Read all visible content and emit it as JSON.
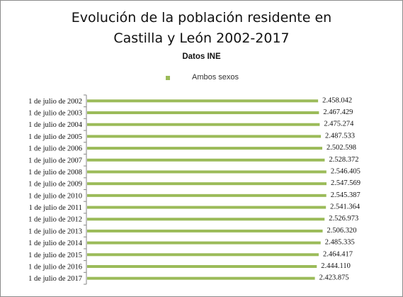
{
  "chart_data": {
    "type": "bar",
    "orientation": "horizontal",
    "title_lines": [
      "Evolución de la población residente en",
      "Castilla y León 2002-2017"
    ],
    "subtitle": "Datos INE",
    "categories": [
      "1 de julio de 2002",
      "1 de julio de 2003",
      "1 de julio de 2004",
      "1 de julio de 2005",
      "1 de julio de 2006",
      "1 de julio de 2007",
      "1 de julio de 2008",
      "1 de julio de 2009",
      "1 de julio de 2010",
      "1 de julio de 2011",
      "1 de julio de 2012",
      "1 de julio de 2013",
      "1 de julio de 2014",
      "1 de julio de 2015",
      "1 de julio de 2016",
      "1 de julio de 2017"
    ],
    "series": [
      {
        "name": "Ambos sexos",
        "values": [
          2458042,
          2467429,
          2475274,
          2487533,
          2502598,
          2528372,
          2546405,
          2547569,
          2545387,
          2541364,
          2526973,
          2506320,
          2485335,
          2464417,
          2444110,
          2423875
        ]
      }
    ],
    "data_labels": [
      "2.458.042",
      "2.467.429",
      "2.475.274",
      "2.487.533",
      "2.502.598",
      "2.528.372",
      "2.546.405",
      "2.547.569",
      "2.545.387",
      "2.541.364",
      "2.526.973",
      "2.506.320",
      "2.485.335",
      "2.464.417",
      "2.444.110",
      "2.423.875"
    ],
    "legend_position": "top",
    "grid": false,
    "colors": {
      "bar": "#9bbb59",
      "axis": "#868686",
      "text": "#111111"
    }
  }
}
